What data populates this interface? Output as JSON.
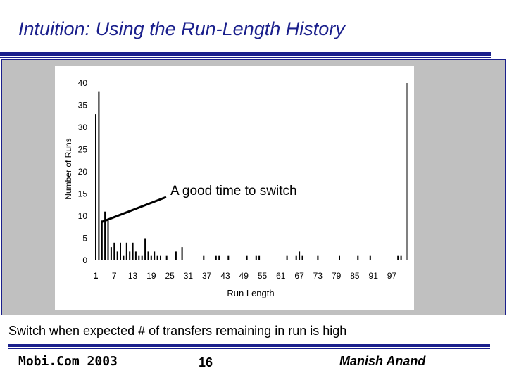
{
  "slide": {
    "title": "Intuition: Using the Run-Length History",
    "caption": "Switch when expected # of transfers remaining in run is high",
    "footer_left": "Mobi.Com 2003",
    "page_number": "16",
    "footer_right": "Manish Anand"
  },
  "colors": {
    "title": "#1a1f8c",
    "rules": "#1a1f8c",
    "panel": "#c0c0c0",
    "bars": "#000000"
  },
  "chart_data": {
    "type": "bar",
    "xlabel": "Run Length",
    "ylabel": "Number of Runs",
    "ylim": [
      0,
      40
    ],
    "y_ticks": [
      "0",
      "5",
      "10",
      "15",
      "20",
      "25",
      "30",
      "35",
      "40"
    ],
    "x_ticks": [
      "1",
      "7",
      "13",
      "19",
      "25",
      "31",
      "37",
      "43",
      "49",
      "55",
      "61",
      "67",
      "73",
      "79",
      "85",
      "91",
      "97"
    ],
    "x_range": [
      1,
      100
    ],
    "grid": false,
    "legend": "none",
    "annotation": "A good time to switch",
    "annotation_target": {
      "x": 3,
      "y": 9
    },
    "series": [
      {
        "points": [
          {
            "x": 1,
            "y": 33
          },
          {
            "x": 2,
            "y": 38
          },
          {
            "x": 3,
            "y": 9
          },
          {
            "x": 4,
            "y": 11
          },
          {
            "x": 5,
            "y": 9
          },
          {
            "x": 6,
            "y": 3
          },
          {
            "x": 7,
            "y": 4
          },
          {
            "x": 8,
            "y": 2
          },
          {
            "x": 9,
            "y": 4
          },
          {
            "x": 10,
            "y": 1
          },
          {
            "x": 11,
            "y": 4
          },
          {
            "x": 12,
            "y": 2
          },
          {
            "x": 13,
            "y": 4
          },
          {
            "x": 14,
            "y": 2
          },
          {
            "x": 15,
            "y": 1
          },
          {
            "x": 16,
            "y": 1
          },
          {
            "x": 17,
            "y": 5
          },
          {
            "x": 18,
            "y": 2
          },
          {
            "x": 19,
            "y": 1
          },
          {
            "x": 20,
            "y": 2
          },
          {
            "x": 21,
            "y": 1
          },
          {
            "x": 22,
            "y": 1
          },
          {
            "x": 24,
            "y": 1
          },
          {
            "x": 27,
            "y": 2
          },
          {
            "x": 29,
            "y": 3
          },
          {
            "x": 36,
            "y": 1
          },
          {
            "x": 40,
            "y": 1
          },
          {
            "x": 41,
            "y": 1
          },
          {
            "x": 44,
            "y": 1
          },
          {
            "x": 50,
            "y": 1
          },
          {
            "x": 53,
            "y": 1
          },
          {
            "x": 54,
            "y": 1
          },
          {
            "x": 63,
            "y": 1
          },
          {
            "x": 66,
            "y": 1
          },
          {
            "x": 67,
            "y": 2
          },
          {
            "x": 68,
            "y": 1
          },
          {
            "x": 73,
            "y": 1
          },
          {
            "x": 80,
            "y": 1
          },
          {
            "x": 86,
            "y": 1
          },
          {
            "x": 90,
            "y": 1
          },
          {
            "x": 99,
            "y": 1
          },
          {
            "x": 100,
            "y": 1
          }
        ]
      }
    ]
  }
}
